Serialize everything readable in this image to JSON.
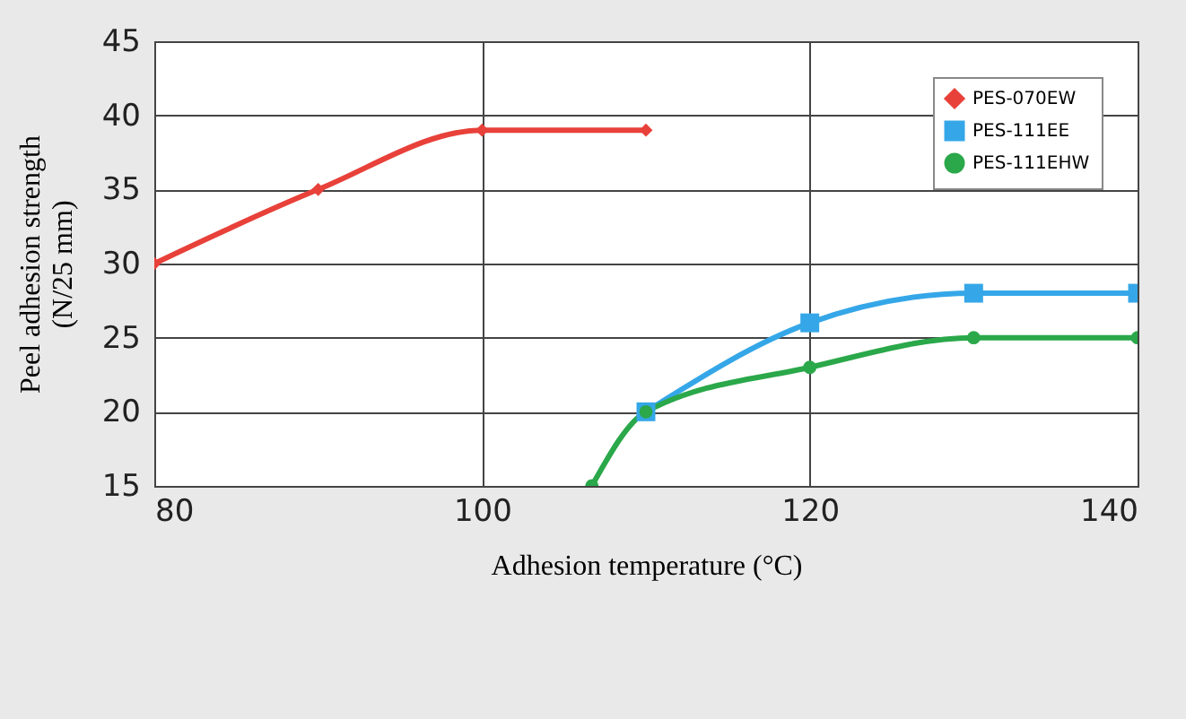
{
  "chart_data": {
    "type": "line",
    "xlabel": "Adhesion temperature (°C)",
    "ylabel": "Peel adhesion strength\n(N/25 mm)",
    "xlim": [
      80,
      140
    ],
    "xticks": [
      80,
      100,
      120,
      140
    ],
    "ylim": [
      15,
      45
    ],
    "yticks": [
      15,
      20,
      25,
      30,
      35,
      40,
      45
    ],
    "grid": true,
    "legend": "top right",
    "series": [
      {
        "name": "PES-070EW",
        "color": "#e8413a",
        "marker": "diamond",
        "x": [
          80,
          90,
          100,
          110
        ],
        "values": [
          30,
          35,
          39,
          39
        ]
      },
      {
        "name": "PES-111EE",
        "color": "#35a7e8",
        "marker": "square",
        "x": [
          110,
          120,
          130,
          140
        ],
        "values": [
          20,
          26,
          28,
          28
        ]
      },
      {
        "name": "PES-111EHW",
        "color": "#2aa84a",
        "marker": "circle",
        "x": [
          106.7,
          110,
          120,
          130,
          140
        ],
        "values": [
          15,
          20,
          23,
          25,
          25
        ]
      }
    ]
  }
}
